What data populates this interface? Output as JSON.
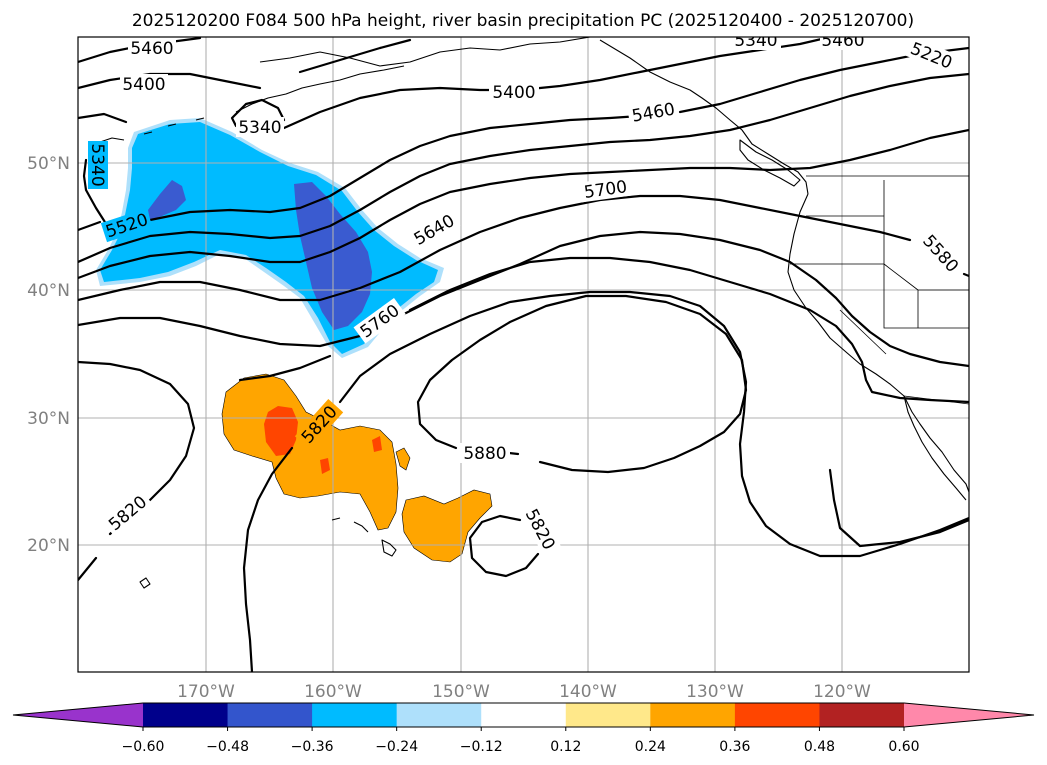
{
  "title": "2025120200 F084 500 hPa height, river basin precipitation PC (2025120400 - 2025120700)",
  "axes": {
    "x_ticks": [
      "170°W",
      "160°W",
      "150°W",
      "140°W",
      "130°W",
      "120°W"
    ],
    "y_ticks": [
      "50°N",
      "40°N",
      "30°N",
      "20°N"
    ]
  },
  "contour_labels": [
    "5460",
    "5400",
    "5340",
    "5340",
    "5520",
    "5400",
    "5460",
    "5340",
    "5460",
    "5220",
    "5700",
    "5640",
    "5760",
    "5580",
    "5820",
    "5820",
    "5880",
    "5820"
  ],
  "colorbar": {
    "ticks": [
      "−0.60",
      "−0.48",
      "−0.36",
      "−0.24",
      "−0.12",
      "0.12",
      "0.24",
      "0.36",
      "0.48",
      "0.60"
    ],
    "colors": [
      "#9933cc",
      "#00008b",
      "#3355cc",
      "#00bbff",
      "#aee0fb",
      "#ffffff",
      "#ffe88a",
      "#ffa500",
      "#ff4500",
      "#b22222",
      "#ff88aa"
    ]
  },
  "fill_colors": {
    "neg_mid": "#00bbff",
    "neg_strong": "#3a5bd0",
    "neg_weak": "#aee0fb",
    "pos_mid": "#ffa500",
    "pos_strong": "#ff4500",
    "pos_weak": "#ffe88a"
  }
}
